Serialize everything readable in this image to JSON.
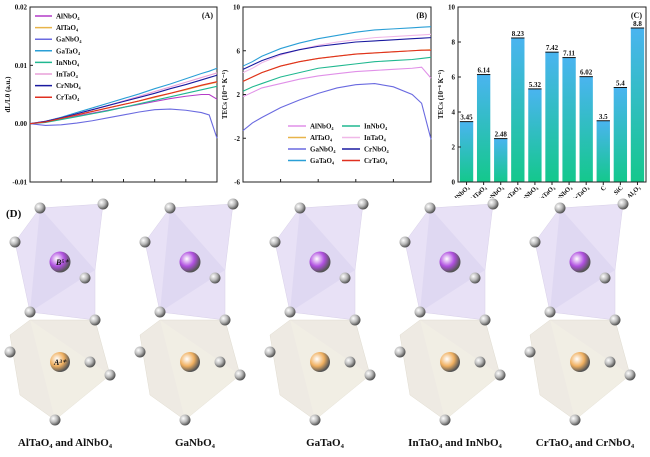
{
  "chart_data": [
    {
      "type": "line",
      "panel_label": "(A)",
      "title": "",
      "xlabel": "Temperature (°C)",
      "ylabel": "dL/L0 (a.u.)",
      "xlim": [
        0,
        1200
      ],
      "ylim": [
        -0.01,
        0.02
      ],
      "xticks": [
        "0",
        "200",
        "400",
        "600",
        "800",
        "1000",
        "1200"
      ],
      "yticks": [
        "-0.01",
        "0.00",
        "0.01",
        "0.02"
      ],
      "legend_position": "top-left",
      "x": [
        0,
        100,
        200,
        300,
        400,
        500,
        600,
        700,
        800,
        900,
        1000,
        1100,
        1150,
        1200
      ],
      "series": [
        {
          "name": "AlNbO4",
          "color": "#b43cc8",
          "values": [
            0,
            0.0003,
            0.0008,
            0.0013,
            0.0018,
            0.0023,
            0.0028,
            0.0033,
            0.0038,
            0.0043,
            0.0047,
            0.005,
            0.005,
            0.0042
          ]
        },
        {
          "name": "AlTaO4",
          "color": "#e8b44a",
          "values": [
            0,
            0.0003,
            0.0009,
            0.0015,
            0.0021,
            0.0027,
            0.0033,
            0.0039,
            0.0045,
            0.0052,
            0.0058,
            0.0065,
            0.0068,
            0.0071
          ]
        },
        {
          "name": "GaNbO4",
          "color": "#6a6ae0",
          "values": [
            0,
            -0.0003,
            -0.0002,
            0.0001,
            0.0005,
            0.001,
            0.0015,
            0.002,
            0.0024,
            0.0025,
            0.0023,
            0.0019,
            0.0015,
            -0.0025
          ]
        },
        {
          "name": "GaTaO4",
          "color": "#2a9fd6",
          "values": [
            0,
            0.0004,
            0.0011,
            0.0019,
            0.0027,
            0.0035,
            0.0043,
            0.0051,
            0.006,
            0.0068,
            0.0077,
            0.0086,
            0.009,
            0.0095
          ]
        },
        {
          "name": "InNbO4",
          "color": "#20b890",
          "values": [
            0,
            0.0002,
            0.0007,
            0.0012,
            0.0017,
            0.0022,
            0.0028,
            0.0034,
            0.004,
            0.0046,
            0.0052,
            0.0058,
            0.0061,
            0.0064
          ]
        },
        {
          "name": "InTaO4",
          "color": "#e8a0d8",
          "values": [
            0,
            0.0004,
            0.001,
            0.0017,
            0.0024,
            0.0031,
            0.0039,
            0.0047,
            0.0055,
            0.0063,
            0.0071,
            0.0079,
            0.0083,
            0.0087
          ]
        },
        {
          "name": "CrNbO4",
          "color": "#1a1aa0",
          "values": [
            0,
            0.0004,
            0.001,
            0.0017,
            0.0024,
            0.0031,
            0.0038,
            0.0045,
            0.0052,
            0.006,
            0.0067,
            0.0075,
            0.0079,
            0.0083
          ]
        },
        {
          "name": "CrTaO4",
          "color": "#e03020",
          "values": [
            0,
            0.0003,
            0.0009,
            0.0015,
            0.0021,
            0.0027,
            0.0033,
            0.0039,
            0.0046,
            0.0052,
            0.0059,
            0.0066,
            0.0069,
            0.0072
          ]
        }
      ]
    },
    {
      "type": "line",
      "panel_label": "(B)",
      "title": "",
      "xlabel": "Temperature (°C)",
      "ylabel": "TECs (10⁻⁶ K⁻¹)",
      "xlim": [
        200,
        1200
      ],
      "ylim": [
        -6,
        10
      ],
      "xticks": [
        "200",
        "400",
        "600",
        "800",
        "1000",
        "1200"
      ],
      "yticks": [
        "-6",
        "-2",
        "2",
        "6",
        "10"
      ],
      "legend_position": "bottom-center",
      "x": [
        200,
        250,
        300,
        400,
        500,
        600,
        700,
        800,
        900,
        1000,
        1100,
        1150,
        1200
      ],
      "series": [
        {
          "name": "AlNbO4",
          "color": "#e090e8",
          "values": [
            1.8,
            2.2,
            2.6,
            3.0,
            3.4,
            3.7,
            3.9,
            4.1,
            4.2,
            4.3,
            4.4,
            4.5,
            3.5
          ]
        },
        {
          "name": "AlTaO4",
          "color": "#e8b44a",
          "values": [
            3.2,
            3.6,
            4.0,
            4.6,
            5.0,
            5.3,
            5.5,
            5.7,
            5.8,
            5.9,
            6.0,
            6.05,
            6.1
          ]
        },
        {
          "name": "GaNbO4",
          "color": "#6a6ae0",
          "values": [
            -1.3,
            -0.6,
            -0.1,
            0.8,
            1.5,
            2.1,
            2.6,
            2.9,
            3.0,
            2.7,
            2.0,
            1.2,
            -2.1
          ]
        },
        {
          "name": "GaTaO4",
          "color": "#2a9fd6",
          "values": [
            4.6,
            5.0,
            5.5,
            6.2,
            6.7,
            7.1,
            7.4,
            7.7,
            7.9,
            8.0,
            8.1,
            8.15,
            8.2
          ]
        },
        {
          "name": "InNbO4",
          "color": "#20b890",
          "values": [
            2.3,
            2.7,
            3.0,
            3.6,
            4.0,
            4.4,
            4.6,
            4.8,
            5.0,
            5.1,
            5.2,
            5.3,
            5.4
          ]
        },
        {
          "name": "InTaO4",
          "color": "#f0b8e8",
          "values": [
            4.0,
            4.4,
            4.9,
            5.6,
            6.1,
            6.5,
            6.8,
            7.0,
            7.2,
            7.3,
            7.4,
            7.45,
            7.5
          ]
        },
        {
          "name": "CrNbO4",
          "color": "#1a1aa0",
          "values": [
            4.3,
            4.7,
            5.1,
            5.7,
            6.1,
            6.4,
            6.6,
            6.8,
            6.9,
            7.0,
            7.1,
            7.15,
            7.2
          ]
        },
        {
          "name": "CrTaO4",
          "color": "#e03020",
          "values": [
            3.2,
            3.6,
            4.0,
            4.6,
            5.0,
            5.3,
            5.5,
            5.7,
            5.8,
            5.9,
            6.0,
            6.05,
            6.05
          ]
        }
      ]
    },
    {
      "type": "bar",
      "panel_label": "(C)",
      "title": "",
      "xlabel": "",
      "ylabel": "TECs (10⁻⁶ K⁻¹)",
      "ylim": [
        0,
        10
      ],
      "yticks": [
        "0",
        "2",
        "4",
        "6",
        "8",
        "10"
      ],
      "categories": [
        "AlNbO4",
        "AlTaO4",
        "GaNbO4",
        "GaTaO4",
        "InNbO4",
        "InTaO4",
        "CrNbO4",
        "CrTaO4",
        "C",
        "SiC",
        "Al2O3"
      ],
      "values": [
        3.45,
        6.14,
        2.48,
        8.23,
        5.32,
        7.42,
        7.11,
        6.02,
        3.5,
        5.4,
        8.8
      ],
      "data_labels": [
        "3.45",
        "6.14",
        "2.48",
        "8.23",
        "5.32",
        "7.42",
        "7.11",
        "6.02",
        "3.5",
        "5.4",
        "8.8"
      ],
      "colors": {
        "top": "#4ab4f0",
        "bottom": "#14c88c"
      }
    }
  ],
  "panel_d": {
    "label": "(D)",
    "ion_labels": {
      "b": "B⁵⁺",
      "a": "A³⁺"
    },
    "structures": [
      {
        "caption": "AlTaO₄ and AlNbO₄"
      },
      {
        "caption": "GaNbO₄"
      },
      {
        "caption": "GaTaO₄"
      },
      {
        "caption": "InTaO₄ and InNbO₄"
      },
      {
        "caption": "CrTaO₄ and CrNbO₄"
      }
    ],
    "colors": {
      "b_polyhedron": "#e4dcf4",
      "a_polyhedron": "#ece8e0",
      "b_atom": "#b050e0",
      "a_atom": "#f0b060",
      "oxygen": "#b8b8b8"
    }
  }
}
